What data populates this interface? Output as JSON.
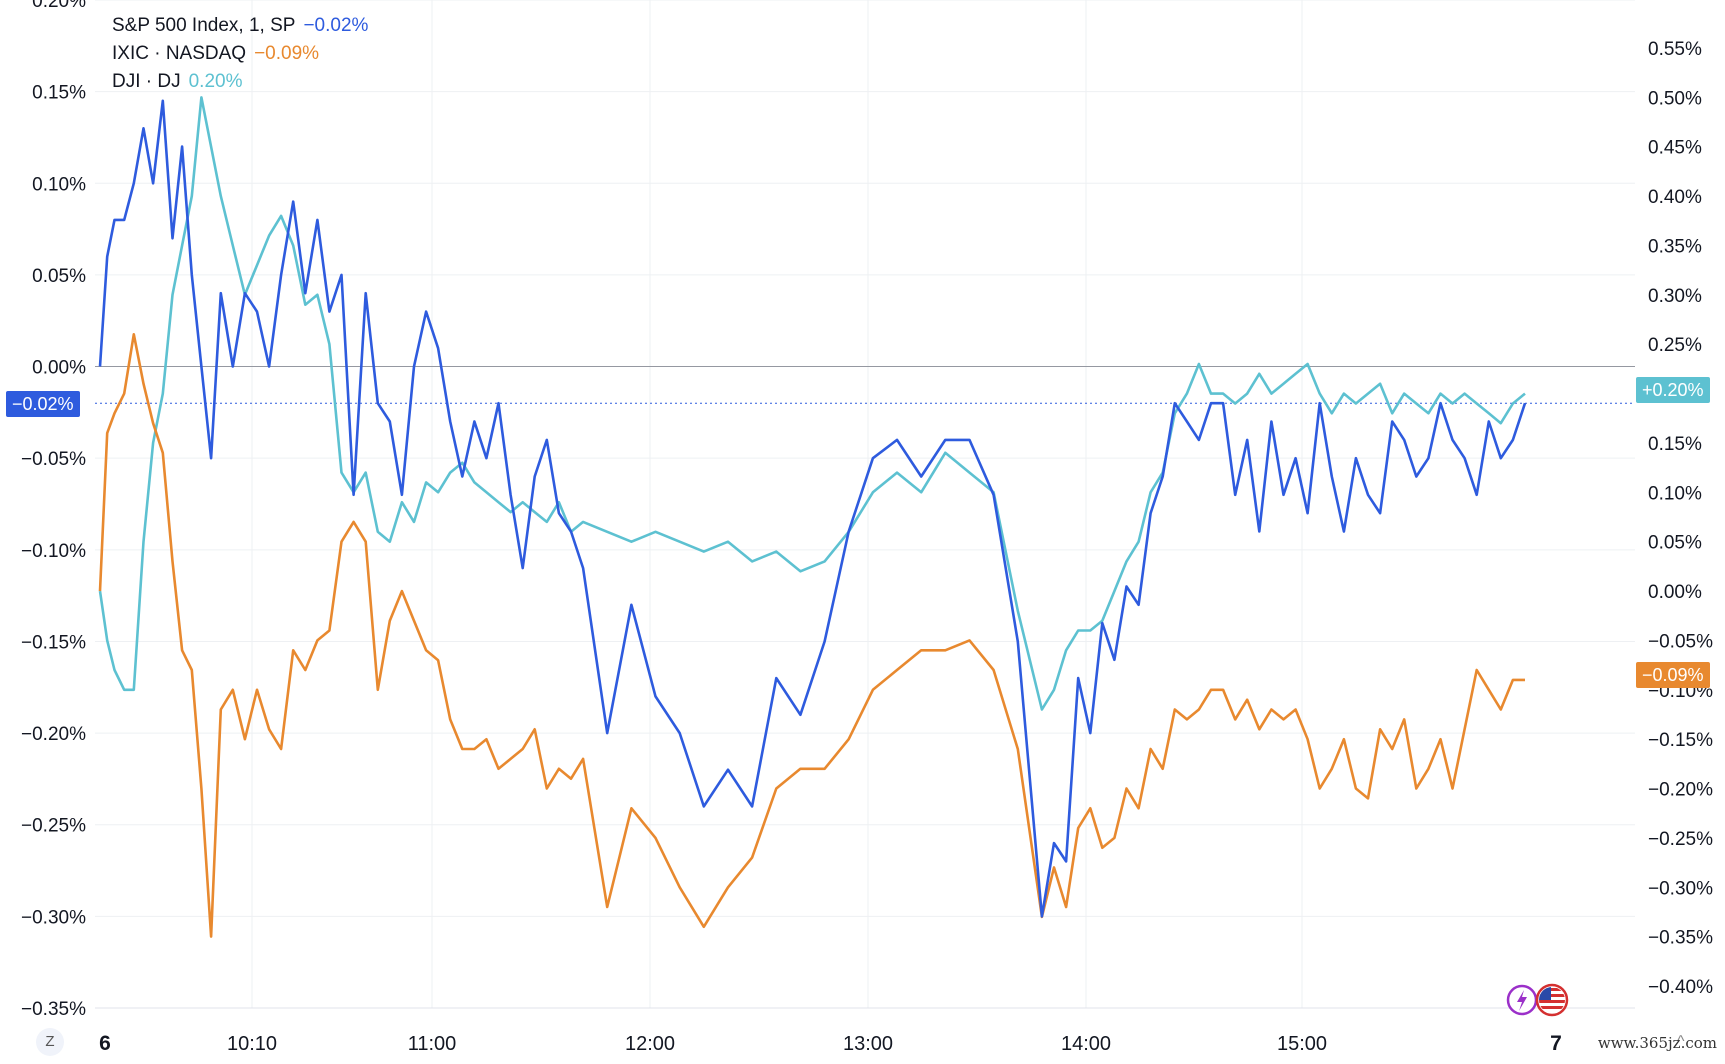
{
  "chart_data": {
    "type": "line",
    "x_ticks": [
      "6",
      "10:10",
      "11:00",
      "12:00",
      "13:00",
      "14:00",
      "15:00",
      "7"
    ],
    "left_axis": {
      "ticks": [
        "0.20%",
        "0.15%",
        "0.10%",
        "0.05%",
        "0.00%",
        "−0.05%",
        "−0.10%",
        "−0.15%",
        "−0.20%",
        "−0.25%",
        "−0.30%",
        "−0.35%"
      ],
      "range": [
        -0.35,
        0.2
      ]
    },
    "right_axis": {
      "ticks": [
        "0.55%",
        "0.50%",
        "0.45%",
        "0.40%",
        "0.35%",
        "0.30%",
        "0.25%",
        "0.20%",
        "0.15%",
        "0.10%",
        "0.05%",
        "0.00%",
        "−0.05%",
        "−0.10%",
        "−0.15%",
        "−0.20%",
        "−0.25%",
        "−0.30%",
        "−0.35%",
        "−0.40%"
      ],
      "range": [
        -0.4,
        0.55
      ]
    },
    "series": [
      {
        "name": "S&P 500 Index, 1, SP",
        "last": "−0.02%",
        "color": "#2e5bde",
        "axis": "left",
        "x": [
          0,
          3,
          6,
          10,
          14,
          18,
          22,
          26,
          30,
          34,
          38,
          42,
          46,
          50,
          55,
          60,
          65,
          70,
          75,
          80,
          85,
          90,
          95,
          100,
          105,
          110,
          115,
          120,
          125,
          130,
          135,
          140,
          145,
          150,
          155,
          160,
          165,
          170,
          175,
          180,
          185,
          190,
          195,
          200,
          210,
          220,
          230,
          240,
          250,
          260,
          270,
          280,
          290,
          300,
          310,
          320,
          330,
          340,
          350,
          360,
          370,
          380,
          390,
          395,
          400,
          405,
          410,
          415,
          420,
          425,
          430,
          435,
          440,
          445,
          450,
          455,
          460,
          465,
          470,
          475,
          480,
          485,
          490,
          495,
          500,
          505,
          510,
          515,
          520,
          525,
          530,
          535,
          540,
          545,
          550,
          555,
          560,
          565,
          570,
          575,
          580,
          585,
          590
        ],
        "y": [
          0.0,
          0.06,
          0.08,
          0.08,
          0.1,
          0.13,
          0.1,
          0.145,
          0.07,
          0.12,
          0.05,
          0.0,
          -0.05,
          0.04,
          0.0,
          0.04,
          0.03,
          0.0,
          0.05,
          0.09,
          0.04,
          0.08,
          0.03,
          0.05,
          -0.07,
          0.04,
          -0.02,
          -0.03,
          -0.07,
          0.0,
          0.03,
          0.01,
          -0.03,
          -0.06,
          -0.03,
          -0.05,
          -0.02,
          -0.07,
          -0.11,
          -0.06,
          -0.04,
          -0.08,
          -0.09,
          -0.11,
          -0.2,
          -0.13,
          -0.18,
          -0.2,
          -0.24,
          -0.22,
          -0.24,
          -0.17,
          -0.19,
          -0.15,
          -0.09,
          -0.05,
          -0.04,
          -0.06,
          -0.04,
          -0.04,
          -0.07,
          -0.15,
          -0.3,
          -0.26,
          -0.27,
          -0.17,
          -0.2,
          -0.14,
          -0.16,
          -0.12,
          -0.13,
          -0.08,
          -0.06,
          -0.02,
          -0.03,
          -0.04,
          -0.02,
          -0.02,
          -0.07,
          -0.04,
          -0.09,
          -0.03,
          -0.07,
          -0.05,
          -0.08,
          -0.02,
          -0.06,
          -0.09,
          -0.05,
          -0.07,
          -0.08,
          -0.03,
          -0.04,
          -0.06,
          -0.05,
          -0.02,
          -0.04,
          -0.05,
          -0.07,
          -0.03,
          -0.05,
          -0.04,
          -0.02
        ]
      },
      {
        "name": "IXIC · NASDAQ",
        "last": "−0.09%",
        "color": "#e8892f",
        "axis": "right",
        "x": [
          0,
          3,
          6,
          10,
          14,
          18,
          22,
          26,
          30,
          34,
          38,
          42,
          46,
          50,
          55,
          60,
          65,
          70,
          75,
          80,
          85,
          90,
          95,
          100,
          105,
          110,
          115,
          120,
          125,
          130,
          135,
          140,
          145,
          150,
          155,
          160,
          165,
          170,
          175,
          180,
          185,
          190,
          195,
          200,
          210,
          220,
          230,
          240,
          250,
          260,
          270,
          280,
          290,
          300,
          310,
          320,
          330,
          340,
          350,
          360,
          370,
          380,
          390,
          395,
          400,
          405,
          410,
          415,
          420,
          425,
          430,
          435,
          440,
          445,
          450,
          455,
          460,
          465,
          470,
          475,
          480,
          485,
          490,
          495,
          500,
          505,
          510,
          515,
          520,
          525,
          530,
          535,
          540,
          545,
          550,
          555,
          560,
          565,
          570,
          575,
          580,
          585,
          590
        ],
        "y": [
          0.0,
          0.16,
          0.18,
          0.2,
          0.26,
          0.21,
          0.17,
          0.14,
          0.03,
          -0.06,
          -0.08,
          -0.2,
          -0.35,
          -0.12,
          -0.1,
          -0.15,
          -0.1,
          -0.14,
          -0.16,
          -0.06,
          -0.08,
          -0.05,
          -0.04,
          0.05,
          0.07,
          0.05,
          -0.1,
          -0.03,
          0.0,
          -0.03,
          -0.06,
          -0.07,
          -0.13,
          -0.16,
          -0.16,
          -0.15,
          -0.18,
          -0.17,
          -0.16,
          -0.14,
          -0.2,
          -0.18,
          -0.19,
          -0.17,
          -0.32,
          -0.22,
          -0.25,
          -0.3,
          -0.34,
          -0.3,
          -0.27,
          -0.2,
          -0.18,
          -0.18,
          -0.15,
          -0.1,
          -0.08,
          -0.06,
          -0.06,
          -0.05,
          -0.08,
          -0.16,
          -0.33,
          -0.28,
          -0.32,
          -0.24,
          -0.22,
          -0.26,
          -0.25,
          -0.2,
          -0.22,
          -0.16,
          -0.18,
          -0.12,
          -0.13,
          -0.12,
          -0.1,
          -0.1,
          -0.13,
          -0.11,
          -0.14,
          -0.12,
          -0.13,
          -0.12,
          -0.15,
          -0.2,
          -0.18,
          -0.15,
          -0.2,
          -0.21,
          -0.14,
          -0.16,
          -0.13,
          -0.2,
          -0.18,
          -0.15,
          -0.2,
          -0.14,
          -0.08,
          -0.1,
          -0.12,
          -0.09,
          -0.09
        ]
      },
      {
        "name": "DJI · DJ",
        "last": "0.20%",
        "color": "#5dc1d1",
        "axis": "right",
        "x": [
          0,
          3,
          6,
          10,
          14,
          18,
          22,
          26,
          30,
          34,
          38,
          42,
          46,
          50,
          55,
          60,
          65,
          70,
          75,
          80,
          85,
          90,
          95,
          100,
          105,
          110,
          115,
          120,
          125,
          130,
          135,
          140,
          145,
          150,
          155,
          160,
          165,
          170,
          175,
          180,
          185,
          190,
          195,
          200,
          210,
          220,
          230,
          240,
          250,
          260,
          270,
          280,
          290,
          300,
          310,
          320,
          330,
          340,
          350,
          360,
          370,
          380,
          390,
          395,
          400,
          405,
          410,
          415,
          420,
          425,
          430,
          435,
          440,
          445,
          450,
          455,
          460,
          465,
          470,
          475,
          480,
          485,
          490,
          495,
          500,
          505,
          510,
          515,
          520,
          525,
          530,
          535,
          540,
          545,
          550,
          555,
          560,
          565,
          570,
          575,
          580,
          585,
          590
        ],
        "y": [
          0.0,
          -0.05,
          -0.08,
          -0.1,
          -0.1,
          0.05,
          0.15,
          0.2,
          0.3,
          0.35,
          0.4,
          0.5,
          0.45,
          0.4,
          0.35,
          0.3,
          0.33,
          0.36,
          0.38,
          0.35,
          0.29,
          0.3,
          0.25,
          0.12,
          0.1,
          0.12,
          0.06,
          0.05,
          0.09,
          0.07,
          0.11,
          0.1,
          0.12,
          0.13,
          0.11,
          0.1,
          0.09,
          0.08,
          0.09,
          0.08,
          0.07,
          0.09,
          0.06,
          0.07,
          0.06,
          0.05,
          0.06,
          0.05,
          0.04,
          0.05,
          0.03,
          0.04,
          0.02,
          0.03,
          0.06,
          0.1,
          0.12,
          0.1,
          0.14,
          0.12,
          0.1,
          -0.02,
          -0.12,
          -0.1,
          -0.06,
          -0.04,
          -0.04,
          -0.03,
          0.0,
          0.03,
          0.05,
          0.1,
          0.12,
          0.18,
          0.2,
          0.23,
          0.2,
          0.2,
          0.19,
          0.2,
          0.22,
          0.2,
          0.21,
          0.22,
          0.23,
          0.2,
          0.18,
          0.2,
          0.19,
          0.2,
          0.21,
          0.18,
          0.2,
          0.19,
          0.18,
          0.2,
          0.19,
          0.2,
          0.19,
          0.18,
          0.17,
          0.19,
          0.2
        ]
      }
    ],
    "badges": {
      "sp": "−0.02%",
      "dji": "+0.20%",
      "ixic": "−0.09%"
    }
  },
  "legend": [
    {
      "name": "S&P 500 Index, 1, SP",
      "value": "−0.02%"
    },
    {
      "name": "IXIC · NASDAQ",
      "value": "−0.09%"
    },
    {
      "name": "DJI · DJ",
      "value": "0.20%"
    }
  ],
  "toolbar": {
    "timezone_button": "Z"
  },
  "watermark": "www.365jz.com",
  "colors": {
    "sp": "#2e5bde",
    "ixic": "#e8892f",
    "dji": "#5dc1d1",
    "grid": "#eef0f3"
  }
}
